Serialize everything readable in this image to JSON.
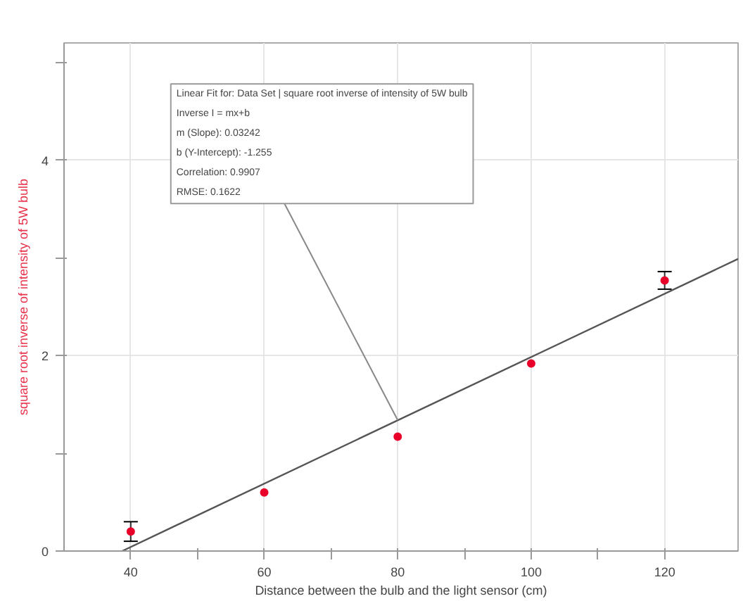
{
  "chart_data": {
    "type": "scatter",
    "xlabel": "Distance between the bulb and the light sensor (cm)",
    "ylabel": "square root inverse of intensity of 5W bulb",
    "xlim": [
      30,
      131
    ],
    "ylim": [
      0,
      5.2
    ],
    "xticks": [
      40,
      {
        "value": 50,
        "label": null
      },
      60,
      {
        "value": 70,
        "label": null
      },
      80,
      {
        "value": 90,
        "label": null
      },
      100,
      {
        "value": 110,
        "label": null
      },
      120
    ],
    "yticks": [
      0,
      {
        "value": 1,
        "label": null
      },
      2,
      {
        "value": 3,
        "label": null
      },
      4,
      {
        "value": 5,
        "label": null
      }
    ],
    "grid": true,
    "series": [
      {
        "marker": "circle",
        "color": "#e8002a",
        "x": [
          40,
          60,
          80,
          100,
          120
        ],
        "values": [
          0.2,
          0.6,
          1.17,
          1.92,
          2.77
        ],
        "errors": [
          0.1,
          null,
          null,
          null,
          0.09
        ]
      },
      {
        "type": "line",
        "color": "#555555",
        "x": [
          38.71,
          131
        ],
        "values": [
          0,
          2.99
        ],
        "line_style": "solid"
      }
    ],
    "annotations": [
      {
        "text": "Linear Fit for: Data Set | square root inverse of intensity of 5W bulb\nInverse I = mx+b\nm (Slope): 0.03242\nb (Y-Intercept): -1.255\nCorrelation: 0.9907\nRMSE: 0.1622",
        "x": 80,
        "y": 1.34
      }
    ]
  }
}
